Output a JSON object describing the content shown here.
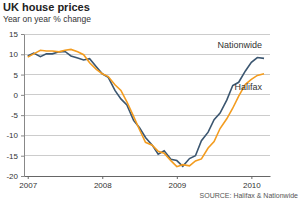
{
  "chart_data": {
    "type": "line",
    "title": "UK house prices",
    "subtitle": "Year on year % change",
    "source": "SOURCE: Halifax & Nationwide",
    "x": [
      2007,
      2007.08,
      2007.17,
      2007.25,
      2007.33,
      2007.42,
      2007.5,
      2007.58,
      2007.67,
      2007.75,
      2007.83,
      2007.92,
      2008,
      2008.08,
      2008.17,
      2008.25,
      2008.33,
      2008.42,
      2008.5,
      2008.58,
      2008.67,
      2008.75,
      2008.83,
      2008.92,
      2009,
      2009.08,
      2009.17,
      2009.25,
      2009.33,
      2009.42,
      2009.5,
      2009.58,
      2009.67,
      2009.75,
      2009.83,
      2009.92,
      2010,
      2010.08,
      2010.17
    ],
    "series": [
      {
        "name": "Nationwide",
        "color": "#3b5670",
        "values": [
          9.6,
          10.3,
          9.4,
          10.1,
          10.1,
          10.6,
          10.7,
          9.6,
          9.1,
          8.6,
          8.9,
          6.9,
          5.2,
          4.3,
          1.1,
          -1.0,
          -2.5,
          -6.3,
          -8.1,
          -10.5,
          -12.4,
          -14.6,
          -13.8,
          -15.9,
          -16.2,
          -17.6,
          -15.7,
          -15.0,
          -11.3,
          -9.2,
          -6.1,
          -4.5,
          -1.3,
          2.3,
          3.1,
          5.9,
          8.0,
          9.2,
          9.0
        ]
      },
      {
        "name": "Halifax",
        "color": "#f39c1f",
        "values": [
          9.3,
          10.1,
          11.0,
          10.8,
          10.8,
          10.6,
          11.0,
          11.2,
          10.6,
          9.9,
          7.9,
          6.3,
          5.2,
          4.5,
          2.5,
          1.1,
          -1.7,
          -5.3,
          -8.6,
          -11.7,
          -12.4,
          -13.9,
          -14.4,
          -16.2,
          -17.7,
          -17.2,
          -17.5,
          -16.3,
          -15.8,
          -13.1,
          -11.5,
          -8.3,
          -5.9,
          -3.3,
          -0.3,
          2.6,
          3.8,
          4.8,
          5.2
        ]
      }
    ],
    "xlim": [
      2006.95,
      2010.25
    ],
    "xticks": [
      2007,
      2008,
      2009,
      2010
    ],
    "ylim": [
      -20,
      15
    ],
    "yticks": [
      -20,
      -15,
      -10,
      -5,
      0,
      5,
      10,
      15
    ],
    "grid": true
  }
}
